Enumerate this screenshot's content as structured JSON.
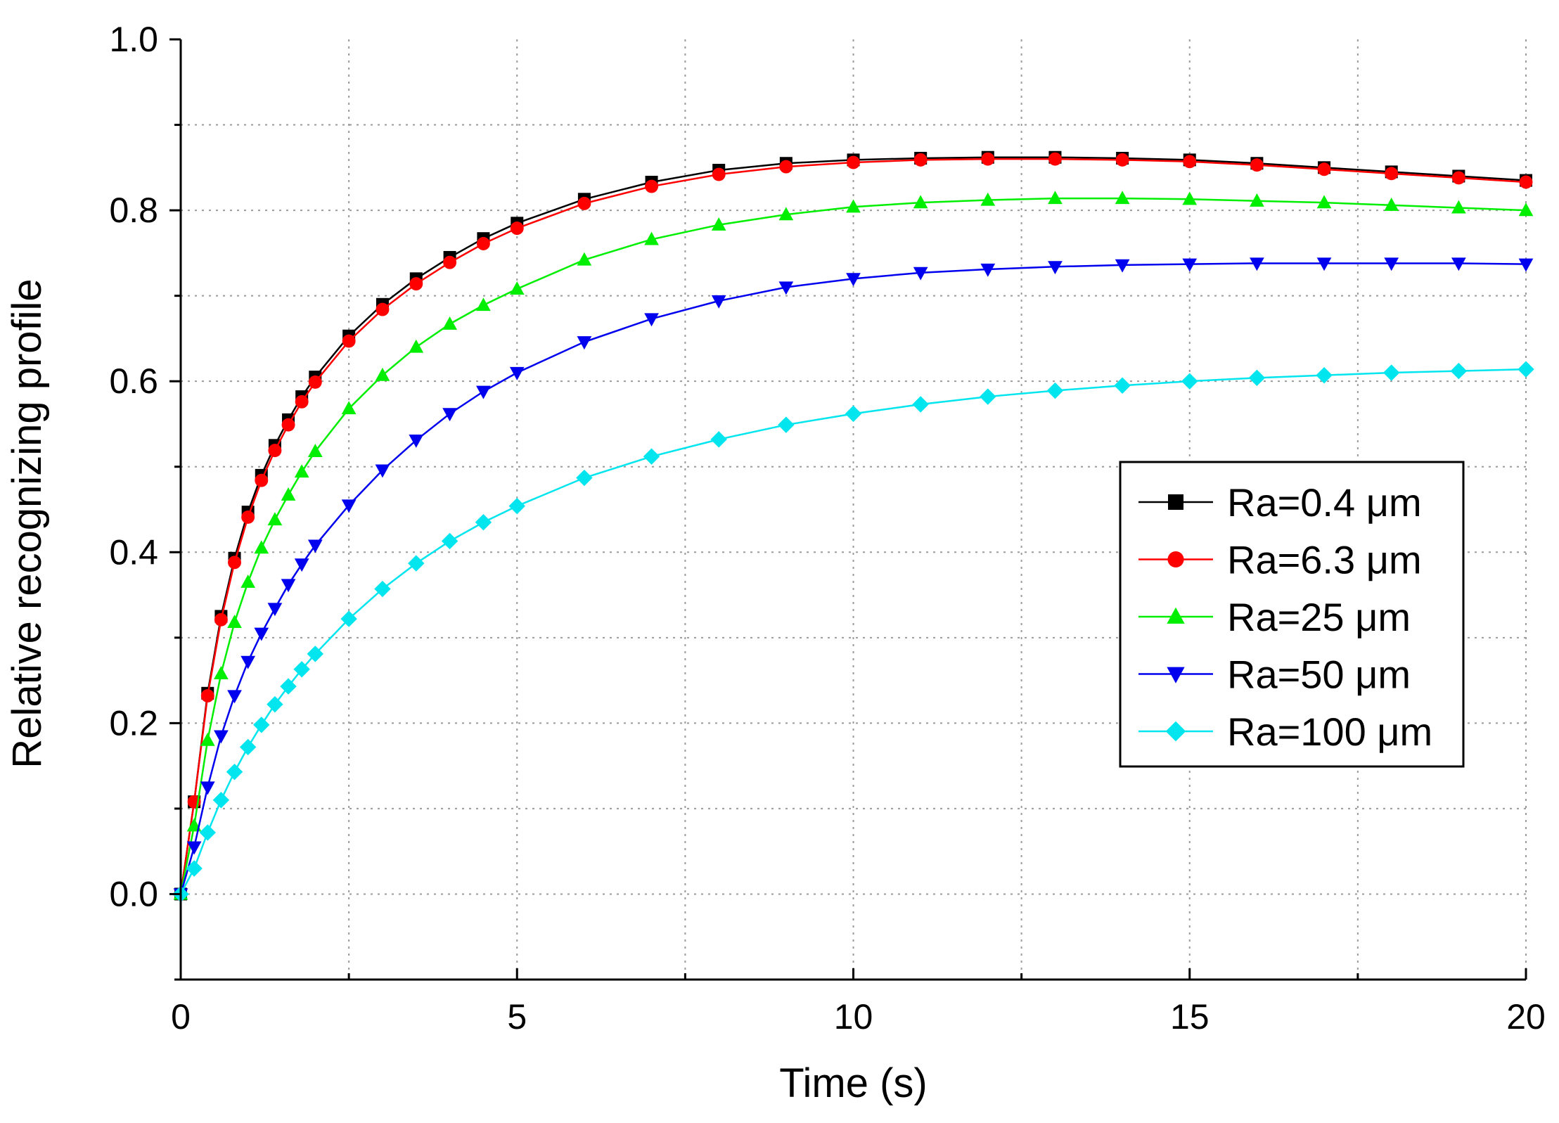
{
  "chart_data": {
    "type": "line",
    "title": "",
    "xlabel": "Time (s)",
    "ylabel": "Relative recognizing profile",
    "xlim": [
      0,
      20
    ],
    "ylim": [
      -0.1,
      1.0
    ],
    "grid": true,
    "legend_position": "center-right",
    "x_ticks": [
      {
        "value": 0,
        "label": "0"
      },
      {
        "value": 5,
        "label": "5"
      },
      {
        "value": 10,
        "label": "10"
      },
      {
        "value": 15,
        "label": "15"
      },
      {
        "value": 20,
        "label": "20"
      }
    ],
    "y_ticks": [
      {
        "value": 0.0,
        "label": "0.0"
      },
      {
        "value": 0.2,
        "label": "0.2"
      },
      {
        "value": 0.4,
        "label": "0.4"
      },
      {
        "value": 0.6,
        "label": "0.6"
      },
      {
        "value": 0.8,
        "label": "0.8"
      },
      {
        "value": 1.0,
        "label": "1.0"
      }
    ],
    "x": [
      0,
      0.2,
      0.4,
      0.6,
      0.8,
      1,
      1.2,
      1.4,
      1.6,
      1.8,
      2,
      2.5,
      3,
      3.5,
      4,
      4.5,
      5,
      6,
      7,
      8,
      9,
      10,
      11,
      12,
      13,
      14,
      15,
      16,
      17,
      18,
      19,
      20
    ],
    "series": [
      {
        "name": "Ra=0.4 μm",
        "color": "#000000",
        "marker": "square",
        "values": [
          0,
          0.108,
          0.235,
          0.325,
          0.393,
          0.447,
          0.49,
          0.525,
          0.555,
          0.582,
          0.605,
          0.653,
          0.69,
          0.72,
          0.745,
          0.767,
          0.785,
          0.813,
          0.833,
          0.847,
          0.855,
          0.859,
          0.861,
          0.862,
          0.862,
          0.861,
          0.859,
          0.855,
          0.85,
          0.845,
          0.84,
          0.835
        ]
      },
      {
        "name": "Ra=6.3 μm",
        "color": "#ff0000",
        "marker": "circle",
        "values": [
          0,
          0.108,
          0.232,
          0.321,
          0.388,
          0.441,
          0.484,
          0.519,
          0.549,
          0.576,
          0.599,
          0.647,
          0.684,
          0.714,
          0.739,
          0.761,
          0.779,
          0.808,
          0.828,
          0.842,
          0.851,
          0.856,
          0.859,
          0.86,
          0.86,
          0.859,
          0.857,
          0.853,
          0.848,
          0.843,
          0.838,
          0.833
        ]
      },
      {
        "name": "Ra=25 μm",
        "color": "#00ee00",
        "marker": "triangle-up",
        "values": [
          0,
          0.08,
          0.18,
          0.258,
          0.318,
          0.365,
          0.405,
          0.438,
          0.467,
          0.494,
          0.518,
          0.568,
          0.607,
          0.64,
          0.667,
          0.689,
          0.708,
          0.742,
          0.766,
          0.783,
          0.795,
          0.804,
          0.809,
          0.812,
          0.814,
          0.814,
          0.813,
          0.811,
          0.809,
          0.806,
          0.803,
          0.8
        ]
      },
      {
        "name": "Ra=50 μm",
        "color": "#0000ee",
        "marker": "triangle-down",
        "values": [
          0,
          0.055,
          0.125,
          0.185,
          0.232,
          0.272,
          0.305,
          0.334,
          0.362,
          0.386,
          0.408,
          0.455,
          0.496,
          0.531,
          0.562,
          0.588,
          0.61,
          0.646,
          0.673,
          0.694,
          0.71,
          0.72,
          0.727,
          0.731,
          0.734,
          0.736,
          0.737,
          0.738,
          0.738,
          0.738,
          0.738,
          0.737
        ]
      },
      {
        "name": "Ra=100 μm",
        "color": "#00e5ee",
        "marker": "diamond",
        "values": [
          0,
          0.03,
          0.072,
          0.11,
          0.143,
          0.172,
          0.198,
          0.222,
          0.243,
          0.263,
          0.281,
          0.322,
          0.357,
          0.387,
          0.413,
          0.435,
          0.454,
          0.487,
          0.512,
          0.532,
          0.549,
          0.562,
          0.573,
          0.582,
          0.589,
          0.595,
          0.6,
          0.604,
          0.607,
          0.61,
          0.612,
          0.614
        ]
      }
    ]
  }
}
